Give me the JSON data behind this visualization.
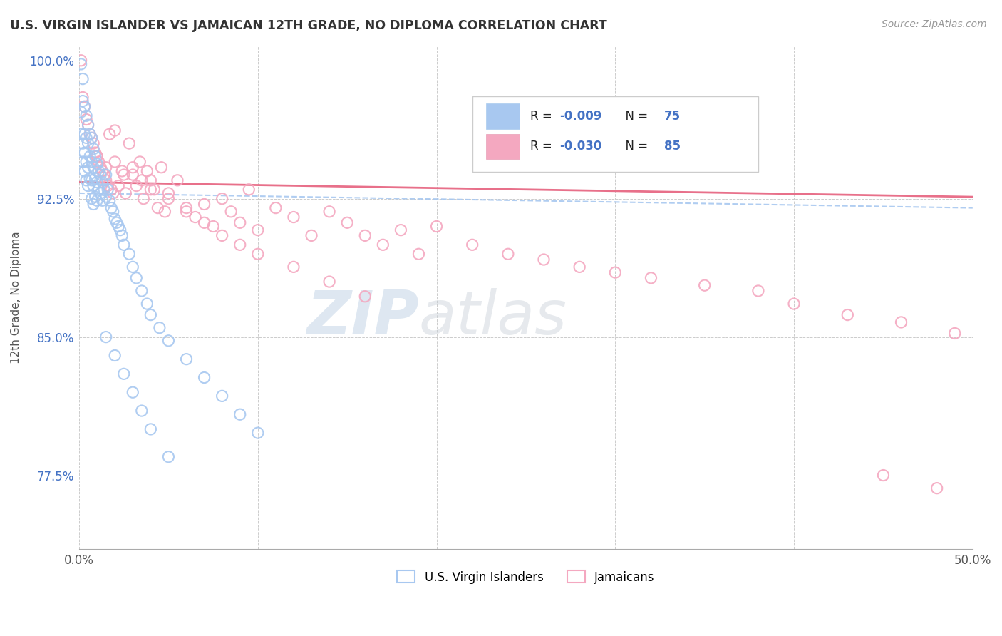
{
  "title": "U.S. VIRGIN ISLANDER VS JAMAICAN 12TH GRADE, NO DIPLOMA CORRELATION CHART",
  "source": "Source: ZipAtlas.com",
  "ylabel": "12th Grade, No Diploma",
  "xlim": [
    0.0,
    0.5
  ],
  "ylim": [
    0.735,
    1.008
  ],
  "xticks": [
    0.0,
    0.1,
    0.2,
    0.3,
    0.4,
    0.5
  ],
  "xticklabels": [
    "0.0%",
    "",
    "",
    "",
    "",
    "50.0%"
  ],
  "yticks": [
    0.775,
    0.85,
    0.925,
    1.0
  ],
  "yticklabels": [
    "77.5%",
    "85.0%",
    "92.5%",
    "100.0%"
  ],
  "r_blue": -0.009,
  "n_blue": 75,
  "r_pink": -0.03,
  "n_pink": 85,
  "blue_color": "#A8C8F0",
  "pink_color": "#F4A8C0",
  "watermark_zip": "ZIP",
  "watermark_atlas": "atlas",
  "legend_label_blue": "U.S. Virgin Islanders",
  "legend_label_pink": "Jamaicans",
  "blue_scatter_x": [
    0.001,
    0.001,
    0.001,
    0.002,
    0.002,
    0.002,
    0.002,
    0.003,
    0.003,
    0.003,
    0.003,
    0.004,
    0.004,
    0.004,
    0.004,
    0.005,
    0.005,
    0.005,
    0.005,
    0.006,
    0.006,
    0.006,
    0.007,
    0.007,
    0.007,
    0.007,
    0.008,
    0.008,
    0.008,
    0.008,
    0.009,
    0.009,
    0.009,
    0.01,
    0.01,
    0.01,
    0.011,
    0.011,
    0.012,
    0.012,
    0.013,
    0.013,
    0.014,
    0.015,
    0.015,
    0.016,
    0.017,
    0.018,
    0.019,
    0.02,
    0.021,
    0.022,
    0.023,
    0.024,
    0.025,
    0.028,
    0.03,
    0.032,
    0.035,
    0.038,
    0.04,
    0.045,
    0.05,
    0.06,
    0.07,
    0.08,
    0.09,
    0.1,
    0.015,
    0.02,
    0.025,
    0.03,
    0.035,
    0.04,
    0.05
  ],
  "blue_scatter_y": [
    0.998,
    0.972,
    0.96,
    0.99,
    0.978,
    0.955,
    0.945,
    0.975,
    0.96,
    0.95,
    0.94,
    0.97,
    0.958,
    0.945,
    0.935,
    0.965,
    0.955,
    0.942,
    0.932,
    0.96,
    0.948,
    0.936,
    0.958,
    0.945,
    0.935,
    0.925,
    0.952,
    0.942,
    0.932,
    0.922,
    0.948,
    0.936,
    0.926,
    0.944,
    0.934,
    0.924,
    0.94,
    0.93,
    0.938,
    0.928,
    0.934,
    0.924,
    0.93,
    0.938,
    0.926,
    0.93,
    0.924,
    0.92,
    0.918,
    0.914,
    0.912,
    0.91,
    0.908,
    0.905,
    0.9,
    0.895,
    0.888,
    0.882,
    0.875,
    0.868,
    0.862,
    0.855,
    0.848,
    0.838,
    0.828,
    0.818,
    0.808,
    0.798,
    0.85,
    0.84,
    0.83,
    0.82,
    0.81,
    0.8,
    0.785
  ],
  "pink_scatter_x": [
    0.001,
    0.002,
    0.003,
    0.004,
    0.005,
    0.006,
    0.007,
    0.008,
    0.009,
    0.01,
    0.011,
    0.012,
    0.013,
    0.014,
    0.015,
    0.016,
    0.017,
    0.018,
    0.019,
    0.02,
    0.022,
    0.024,
    0.026,
    0.028,
    0.03,
    0.032,
    0.034,
    0.036,
    0.038,
    0.04,
    0.042,
    0.044,
    0.046,
    0.048,
    0.05,
    0.055,
    0.06,
    0.065,
    0.07,
    0.075,
    0.08,
    0.085,
    0.09,
    0.095,
    0.1,
    0.11,
    0.12,
    0.13,
    0.14,
    0.15,
    0.16,
    0.17,
    0.18,
    0.19,
    0.2,
    0.22,
    0.24,
    0.26,
    0.28,
    0.3,
    0.32,
    0.35,
    0.38,
    0.4,
    0.43,
    0.46,
    0.49,
    0.01,
    0.015,
    0.02,
    0.025,
    0.03,
    0.035,
    0.04,
    0.05,
    0.06,
    0.07,
    0.08,
    0.09,
    0.1,
    0.12,
    0.14,
    0.16,
    0.45,
    0.48
  ],
  "pink_scatter_y": [
    1.0,
    0.98,
    0.975,
    0.968,
    0.965,
    0.96,
    0.958,
    0.955,
    0.95,
    0.948,
    0.945,
    0.942,
    0.94,
    0.938,
    0.935,
    0.932,
    0.96,
    0.93,
    0.928,
    0.962,
    0.932,
    0.94,
    0.928,
    0.955,
    0.938,
    0.932,
    0.945,
    0.925,
    0.94,
    0.935,
    0.93,
    0.92,
    0.942,
    0.918,
    0.928,
    0.935,
    0.92,
    0.915,
    0.922,
    0.91,
    0.925,
    0.918,
    0.912,
    0.93,
    0.908,
    0.92,
    0.915,
    0.905,
    0.918,
    0.912,
    0.905,
    0.9,
    0.908,
    0.895,
    0.91,
    0.9,
    0.895,
    0.892,
    0.888,
    0.885,
    0.882,
    0.878,
    0.875,
    0.868,
    0.862,
    0.858,
    0.852,
    0.948,
    0.942,
    0.945,
    0.938,
    0.942,
    0.935,
    0.93,
    0.925,
    0.918,
    0.912,
    0.905,
    0.9,
    0.895,
    0.888,
    0.88,
    0.872,
    0.775,
    0.768
  ]
}
